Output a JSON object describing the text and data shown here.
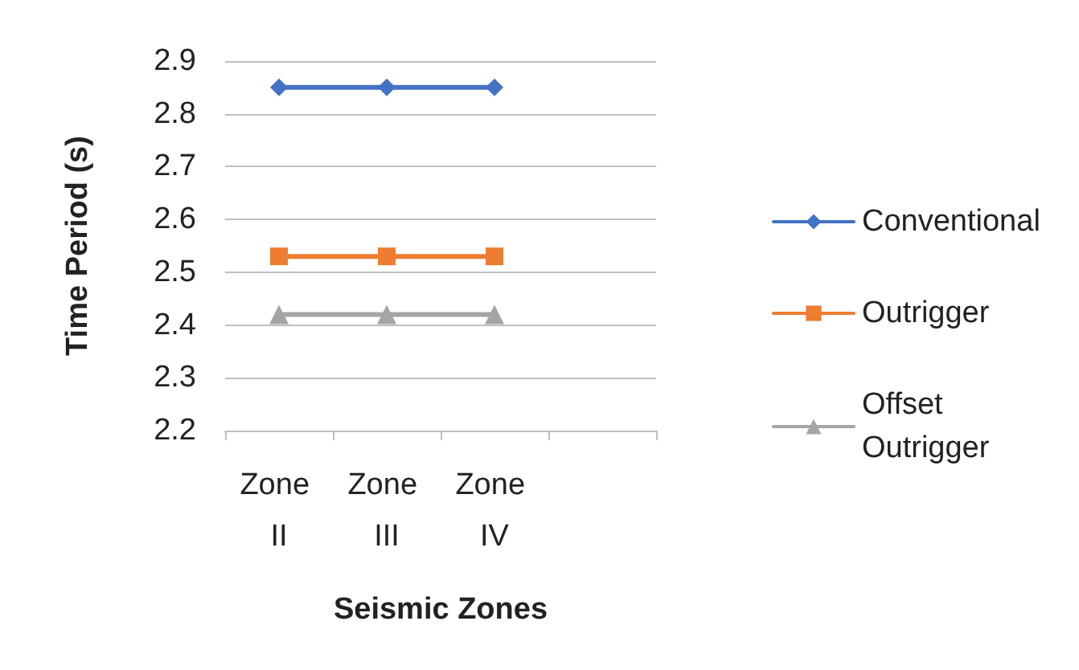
{
  "chart_data": {
    "type": "line",
    "xlabel": "Seismic Zones",
    "ylabel": "Time Period (s)",
    "categories": [
      "Zone II",
      "Zone III",
      "Zone IV",
      null
    ],
    "series": [
      {
        "name": "Conventional",
        "color": "#4472c4",
        "marker": "diamond",
        "values": [
          2.85,
          2.85,
          2.85,
          null
        ]
      },
      {
        "name": "Outrigger",
        "color": "#ed7d31",
        "marker": "square",
        "values": [
          2.53,
          2.53,
          2.53,
          null
        ]
      },
      {
        "name": "Offset Outrigger",
        "color": "#a5a5a5",
        "marker": "triangle",
        "values": [
          2.42,
          2.42,
          2.42,
          null
        ]
      }
    ],
    "ylim": [
      2.2,
      2.9
    ],
    "yticks": [
      2.2,
      2.3,
      2.4,
      2.5,
      2.6,
      2.7,
      2.8,
      2.9
    ],
    "grid": "y",
    "legend": "right",
    "line_style": "solid"
  }
}
